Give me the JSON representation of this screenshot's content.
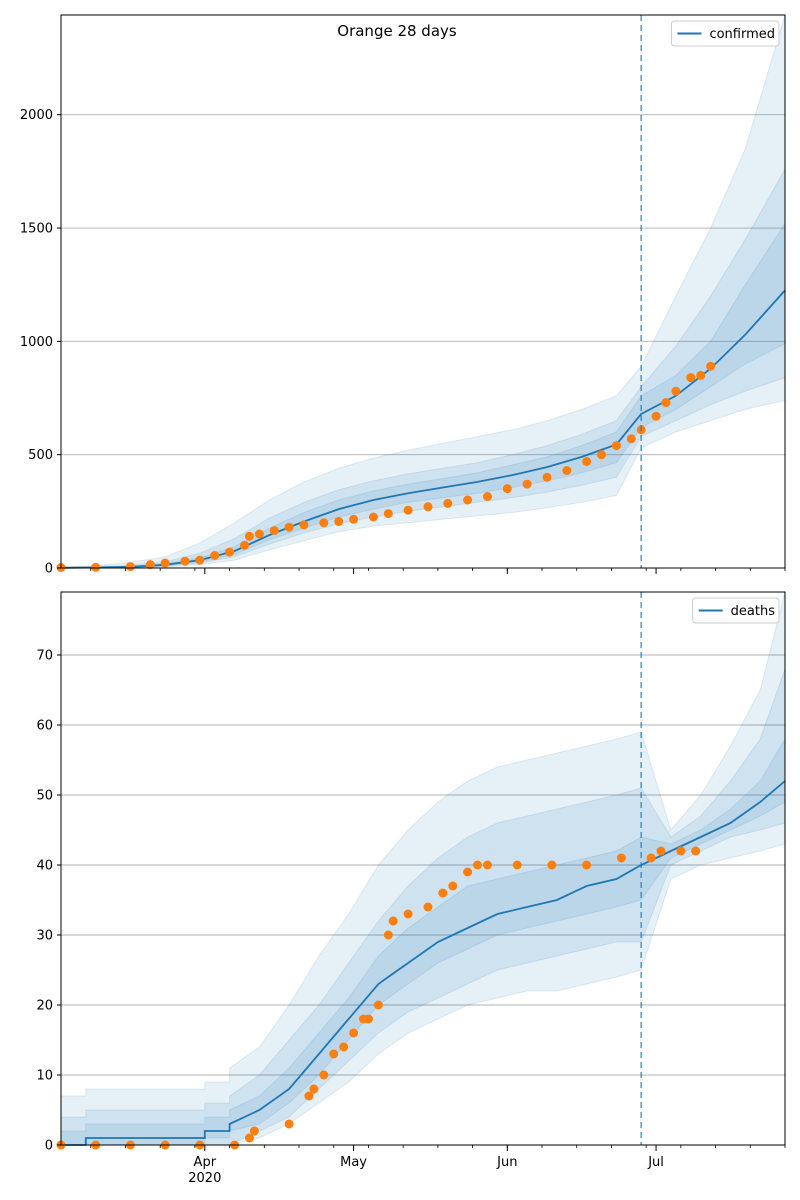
{
  "figure": {
    "title": "Orange 28 days",
    "forecast_start": "2020-06-28",
    "colors": {
      "model": "#1f77b4",
      "observed": "#ff7f0e",
      "band": "#1f77b4",
      "grid": "#b0b0b0"
    },
    "x_axis": {
      "range": [
        "2020-03-03",
        "2020-07-27"
      ],
      "month_ticks": [
        {
          "date": "2020-04-01",
          "label": "Apr",
          "sublabel": "2020"
        },
        {
          "date": "2020-05-01",
          "label": "May",
          "sublabel": ""
        },
        {
          "date": "2020-06-01",
          "label": "Jun",
          "sublabel": ""
        },
        {
          "date": "2020-07-01",
          "label": "Jul",
          "sublabel": ""
        }
      ]
    }
  },
  "chart_data": [
    {
      "type": "line",
      "panel": "confirmed",
      "legend": "confirmed",
      "legend_position": "top-right",
      "grid": "horizontal",
      "ylim": [
        0,
        2440
      ],
      "yticks": [
        "0",
        "500",
        "1000",
        "1500",
        "2000"
      ],
      "model": {
        "x": [
          "2020-03-03",
          "2020-03-10",
          "2020-03-17",
          "2020-03-24",
          "2020-03-31",
          "2020-04-07",
          "2020-04-14",
          "2020-04-21",
          "2020-04-28",
          "2020-05-05",
          "2020-05-12",
          "2020-05-19",
          "2020-05-26",
          "2020-06-02",
          "2020-06-09",
          "2020-06-16",
          "2020-06-23",
          "2020-06-28",
          "2020-07-05",
          "2020-07-12",
          "2020-07-19",
          "2020-07-27"
        ],
        "y": [
          1,
          2,
          5,
          14,
          35,
          75,
          145,
          205,
          260,
          300,
          330,
          355,
          380,
          410,
          445,
          490,
          545,
          680,
          760,
          880,
          1030,
          1225
        ]
      },
      "bands": [
        {
          "level": "outer",
          "lower": [
            0,
            0,
            0,
            5,
            15,
            35,
            80,
            120,
            160,
            185,
            200,
            215,
            230,
            245,
            265,
            290,
            320,
            530,
            600,
            650,
            700,
            740
          ],
          "upper": [
            5,
            10,
            25,
            50,
            110,
            200,
            300,
            380,
            440,
            485,
            520,
            550,
            580,
            610,
            650,
            700,
            760,
            890,
            1200,
            1500,
            1850,
            2440
          ]
        },
        {
          "level": "middle",
          "lower": [
            0,
            1,
            2,
            8,
            22,
            50,
            105,
            155,
            195,
            225,
            250,
            270,
            290,
            310,
            335,
            365,
            400,
            580,
            650,
            720,
            780,
            840
          ],
          "upper": [
            3,
            5,
            12,
            28,
            65,
            130,
            220,
            290,
            345,
            385,
            415,
            440,
            465,
            500,
            540,
            590,
            650,
            800,
            980,
            1200,
            1450,
            1760
          ]
        },
        {
          "level": "inner",
          "lower": [
            1,
            1,
            3,
            10,
            28,
            60,
            125,
            175,
            225,
            260,
            290,
            310,
            330,
            355,
            385,
            420,
            465,
            620,
            700,
            800,
            900,
            990
          ],
          "upper": [
            2,
            3,
            8,
            20,
            45,
            95,
            175,
            245,
            300,
            340,
            370,
            395,
            420,
            455,
            490,
            540,
            600,
            760,
            850,
            1000,
            1250,
            1520
          ]
        }
      ],
      "observed": {
        "x": [
          "2020-03-03",
          "2020-03-10",
          "2020-03-17",
          "2020-03-21",
          "2020-03-24",
          "2020-03-28",
          "2020-03-31",
          "2020-04-03",
          "2020-04-06",
          "2020-04-09",
          "2020-04-10",
          "2020-04-12",
          "2020-04-15",
          "2020-04-18",
          "2020-04-21",
          "2020-04-25",
          "2020-04-28",
          "2020-05-01",
          "2020-05-05",
          "2020-05-08",
          "2020-05-12",
          "2020-05-16",
          "2020-05-20",
          "2020-05-24",
          "2020-05-28",
          "2020-06-01",
          "2020-06-05",
          "2020-06-09",
          "2020-06-13",
          "2020-06-17",
          "2020-06-20",
          "2020-06-23",
          "2020-06-26",
          "2020-06-28",
          "2020-07-01",
          "2020-07-03",
          "2020-07-05",
          "2020-07-08",
          "2020-07-10",
          "2020-07-12"
        ],
        "y": [
          2,
          3,
          6,
          15,
          22,
          30,
          35,
          55,
          70,
          100,
          140,
          150,
          165,
          180,
          190,
          200,
          205,
          215,
          225,
          240,
          255,
          270,
          285,
          300,
          315,
          350,
          370,
          400,
          430,
          470,
          500,
          540,
          570,
          610,
          670,
          730,
          780,
          840,
          850,
          890
        ]
      }
    },
    {
      "type": "line",
      "panel": "deaths",
      "legend": "deaths",
      "legend_position": "top-right",
      "grid": "horizontal",
      "ylim": [
        0,
        79
      ],
      "yticks": [
        "0",
        "10",
        "20",
        "30",
        "40",
        "50",
        "60",
        "70"
      ],
      "model": {
        "x": [
          "2020-03-03",
          "2020-03-08",
          "2020-03-08",
          "2020-04-01",
          "2020-04-01",
          "2020-04-06",
          "2020-04-06",
          "2020-04-12",
          "2020-04-18",
          "2020-04-24",
          "2020-04-30",
          "2020-05-06",
          "2020-05-12",
          "2020-05-18",
          "2020-05-24",
          "2020-05-30",
          "2020-06-05",
          "2020-06-11",
          "2020-06-17",
          "2020-06-23",
          "2020-06-28",
          "2020-07-04",
          "2020-07-10",
          "2020-07-16",
          "2020-07-22",
          "2020-07-27"
        ],
        "y": [
          0,
          0,
          1,
          1,
          2,
          2,
          3,
          5,
          8,
          13,
          18,
          23,
          26,
          29,
          31,
          33,
          34,
          35,
          37,
          38,
          40,
          42,
          44,
          46,
          49,
          52
        ]
      },
      "bands": [
        {
          "level": "outer",
          "lower": [
            0,
            0,
            0,
            0,
            0,
            0,
            0,
            1,
            3,
            6,
            9,
            13,
            16,
            18,
            20,
            21,
            22,
            22,
            23,
            24,
            25,
            38,
            40,
            41,
            42,
            43
          ],
          "upper": [
            7,
            7,
            8,
            8,
            9,
            9,
            11,
            14,
            20,
            27,
            33,
            40,
            45,
            49,
            52,
            54,
            55,
            56,
            57,
            58,
            59,
            45,
            50,
            57,
            65,
            79
          ]
        },
        {
          "level": "middle",
          "lower": [
            0,
            0,
            0,
            0,
            0,
            0,
            0,
            2,
            4,
            8,
            12,
            16,
            19,
            21,
            23,
            25,
            26,
            27,
            28,
            29,
            29,
            40,
            42,
            44,
            45,
            46
          ],
          "upper": [
            4,
            4,
            5,
            5,
            6,
            6,
            7,
            10,
            15,
            20,
            26,
            32,
            37,
            41,
            44,
            46,
            47,
            48,
            49,
            50,
            51,
            44,
            47,
            52,
            58,
            68
          ]
        },
        {
          "level": "inner",
          "lower": [
            0,
            0,
            0,
            0,
            1,
            1,
            2,
            3,
            6,
            10,
            15,
            20,
            23,
            26,
            28,
            30,
            31,
            32,
            33,
            34,
            35,
            41,
            43,
            45,
            47,
            49
          ],
          "upper": [
            2,
            2,
            3,
            3,
            4,
            4,
            5,
            7,
            11,
            16,
            21,
            27,
            31,
            34,
            37,
            38,
            39,
            40,
            41,
            42,
            44,
            43,
            45,
            48,
            52,
            58
          ]
        }
      ],
      "observed": {
        "x": [
          "2020-03-03",
          "2020-03-10",
          "2020-03-17",
          "2020-03-24",
          "2020-03-31",
          "2020-04-07",
          "2020-04-10",
          "2020-04-11",
          "2020-04-18",
          "2020-04-22",
          "2020-04-23",
          "2020-04-25",
          "2020-04-27",
          "2020-04-29",
          "2020-05-01",
          "2020-05-03",
          "2020-05-04",
          "2020-05-06",
          "2020-05-08",
          "2020-05-09",
          "2020-05-12",
          "2020-05-16",
          "2020-05-19",
          "2020-05-21",
          "2020-05-24",
          "2020-05-26",
          "2020-05-28",
          "2020-06-03",
          "2020-06-10",
          "2020-06-17",
          "2020-06-24",
          "2020-06-30",
          "2020-07-02",
          "2020-07-06",
          "2020-07-09"
        ],
        "y": [
          0,
          0,
          0,
          0,
          0,
          0,
          1,
          2,
          3,
          7,
          8,
          10,
          13,
          14,
          16,
          18,
          18,
          20,
          30,
          32,
          33,
          34,
          36,
          37,
          39,
          40,
          40,
          40,
          40,
          40,
          41,
          41,
          42,
          42,
          42
        ]
      }
    }
  ]
}
